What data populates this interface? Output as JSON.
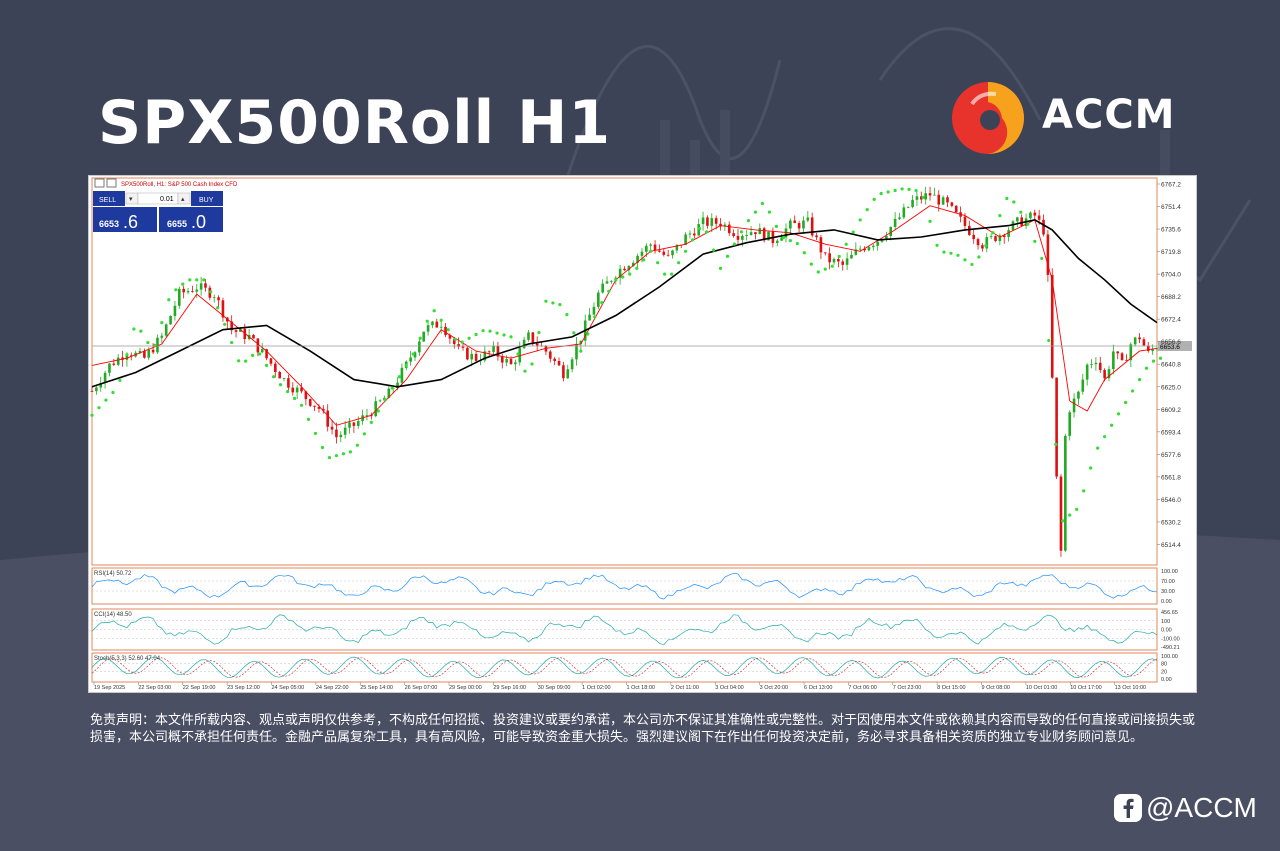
{
  "header": {
    "title": "SPX500Roll H1",
    "brand": "ACCM",
    "brand_colors": {
      "red": "#e8322c",
      "orange": "#f6a21c"
    }
  },
  "chart_window": {
    "caption": "SPX500Roll, H1:  S&P 500 Cash Index CFD",
    "trade_panel": {
      "sell_label": "SELL",
      "buy_label": "BUY",
      "lot": "0.01",
      "sell_price_main": "6653",
      "sell_price_big": ".6",
      "buy_price_main": "6655",
      "buy_price_big": ".0"
    },
    "current_price_label": "6653.6"
  },
  "chart_data": {
    "type": "candlestick",
    "symbol": "SPX500Roll",
    "timeframe": "H1",
    "price_axis": {
      "ticks": [
        "6767.2",
        "6751.4",
        "6735.6",
        "6719.8",
        "6704.0",
        "6688.2",
        "6672.4",
        "6656.6",
        "6640.8",
        "6625.0",
        "6609.2",
        "6593.4",
        "6577.6",
        "6561.8",
        "6546.0",
        "6530.2",
        "6514.4"
      ],
      "ylim": [
        6500,
        6770
      ]
    },
    "time_axis": [
      "19 Sep 2025",
      "22 Sep 03:00",
      "22 Sep 19:00",
      "23 Sep 12:00",
      "24 Sep 05:00",
      "24 Sep 22:00",
      "25 Sep 14:00",
      "26 Sep 07:00",
      "29 Sep 00:00",
      "29 Sep 16:00",
      "30 Sep 09:00",
      "1 Oct 02:00",
      "1 Oct 18:00",
      "2 Oct 11:00",
      "3 Oct 04:00",
      "3 Oct 20:00",
      "6 Oct 13:00",
      "7 Oct 06:00",
      "7 Oct 23:00",
      "8 Oct 15:00",
      "9 Oct 08:00",
      "10 Oct 01:00",
      "10 Oct 17:00",
      "13 Oct 10:00"
    ],
    "close_path": [
      [
        0,
        6622
      ],
      [
        4,
        6640
      ],
      [
        8,
        6650
      ],
      [
        12,
        6645
      ],
      [
        16,
        6660
      ],
      [
        20,
        6690
      ],
      [
        24,
        6695
      ],
      [
        28,
        6690
      ],
      [
        32,
        6665
      ],
      [
        36,
        6660
      ],
      [
        40,
        6645
      ],
      [
        44,
        6630
      ],
      [
        48,
        6620
      ],
      [
        52,
        6610
      ],
      [
        56,
        6590
      ],
      [
        60,
        6598
      ],
      [
        64,
        6608
      ],
      [
        68,
        6620
      ],
      [
        72,
        6640
      ],
      [
        76,
        6665
      ],
      [
        80,
        6670
      ],
      [
        84,
        6650
      ],
      [
        88,
        6645
      ],
      [
        92,
        6650
      ],
      [
        96,
        6640
      ],
      [
        100,
        6660
      ],
      [
        104,
        6650
      ],
      [
        108,
        6635
      ],
      [
        112,
        6660
      ],
      [
        116,
        6690
      ],
      [
        120,
        6705
      ],
      [
        124,
        6715
      ],
      [
        128,
        6725
      ],
      [
        132,
        6715
      ],
      [
        136,
        6730
      ],
      [
        140,
        6740
      ],
      [
        144,
        6740
      ],
      [
        148,
        6732
      ],
      [
        152,
        6735
      ],
      [
        156,
        6728
      ],
      [
        160,
        6738
      ],
      [
        164,
        6740
      ],
      [
        168,
        6715
      ],
      [
        172,
        6710
      ],
      [
        176,
        6722
      ],
      [
        180,
        6728
      ],
      [
        184,
        6740
      ],
      [
        188,
        6755
      ],
      [
        192,
        6760
      ],
      [
        196,
        6752
      ],
      [
        200,
        6738
      ],
      [
        204,
        6725
      ],
      [
        208,
        6732
      ],
      [
        212,
        6740
      ],
      [
        216,
        6745
      ],
      [
        218,
        6735
      ],
      [
        219,
        6700
      ],
      [
        220,
        6630
      ],
      [
        221,
        6560
      ],
      [
        222,
        6520
      ],
      [
        223,
        6590
      ],
      [
        224,
        6610
      ],
      [
        226,
        6620
      ],
      [
        228,
        6640
      ],
      [
        230,
        6645
      ],
      [
        232,
        6630
      ],
      [
        234,
        6650
      ],
      [
        236,
        6640
      ],
      [
        238,
        6655
      ],
      [
        240,
        6660
      ],
      [
        242,
        6648
      ],
      [
        244,
        6654
      ]
    ],
    "series": [
      {
        "name": "MA fast",
        "color": "#ff0000",
        "points": [
          [
            0,
            6640
          ],
          [
            8,
            6645
          ],
          [
            16,
            6655
          ],
          [
            24,
            6690
          ],
          [
            32,
            6670
          ],
          [
            40,
            6650
          ],
          [
            48,
            6625
          ],
          [
            56,
            6598
          ],
          [
            64,
            6605
          ],
          [
            72,
            6630
          ],
          [
            80,
            6665
          ],
          [
            88,
            6650
          ],
          [
            96,
            6645
          ],
          [
            104,
            6652
          ],
          [
            112,
            6655
          ],
          [
            120,
            6700
          ],
          [
            128,
            6720
          ],
          [
            136,
            6725
          ],
          [
            144,
            6738
          ],
          [
            152,
            6735
          ],
          [
            160,
            6733
          ],
          [
            168,
            6725
          ],
          [
            176,
            6720
          ],
          [
            184,
            6735
          ],
          [
            192,
            6752
          ],
          [
            200,
            6745
          ],
          [
            208,
            6730
          ],
          [
            216,
            6742
          ],
          [
            220,
            6700
          ],
          [
            224,
            6615
          ],
          [
            228,
            6608
          ],
          [
            232,
            6630
          ],
          [
            236,
            6640
          ],
          [
            240,
            6650
          ],
          [
            244,
            6652
          ]
        ]
      },
      {
        "name": "MA slow",
        "color": "#000000",
        "points": [
          [
            0,
            6625
          ],
          [
            10,
            6635
          ],
          [
            20,
            6650
          ],
          [
            30,
            6665
          ],
          [
            40,
            6668
          ],
          [
            50,
            6650
          ],
          [
            60,
            6630
          ],
          [
            70,
            6625
          ],
          [
            80,
            6630
          ],
          [
            90,
            6645
          ],
          [
            100,
            6655
          ],
          [
            110,
            6660
          ],
          [
            120,
            6675
          ],
          [
            130,
            6695
          ],
          [
            140,
            6718
          ],
          [
            150,
            6726
          ],
          [
            160,
            6732
          ],
          [
            170,
            6735
          ],
          [
            180,
            6728
          ],
          [
            190,
            6730
          ],
          [
            200,
            6735
          ],
          [
            210,
            6738
          ],
          [
            216,
            6742
          ],
          [
            220,
            6735
          ],
          [
            226,
            6715
          ],
          [
            232,
            6700
          ],
          [
            238,
            6683
          ],
          [
            244,
            6670
          ]
        ]
      },
      {
        "name": "Parabolic SAR",
        "color": "#33dd33",
        "points": [
          [
            0,
            6605
          ],
          [
            6,
            6625
          ],
          [
            10,
            6670
          ],
          [
            14,
            6650
          ],
          [
            18,
            6690
          ],
          [
            22,
            6700
          ],
          [
            26,
            6700
          ],
          [
            30,
            6672
          ],
          [
            34,
            6640
          ],
          [
            38,
            6650
          ],
          [
            42,
            6630
          ],
          [
            48,
            6612
          ],
          [
            54,
            6575
          ],
          [
            60,
            6580
          ],
          [
            66,
            6610
          ],
          [
            70,
            6630
          ],
          [
            74,
            6650
          ],
          [
            78,
            6680
          ],
          [
            84,
            6655
          ],
          [
            90,
            6665
          ],
          [
            96,
            6660
          ],
          [
            100,
            6630
          ],
          [
            104,
            6685
          ],
          [
            108,
            6682
          ],
          [
            112,
            6650
          ],
          [
            116,
            6680
          ],
          [
            120,
            6700
          ],
          [
            124,
            6705
          ],
          [
            128,
            6720
          ],
          [
            132,
            6700
          ],
          [
            136,
            6720
          ],
          [
            140,
            6740
          ],
          [
            144,
            6708
          ],
          [
            150,
            6740
          ],
          [
            154,
            6755
          ],
          [
            158,
            6730
          ],
          [
            162,
            6725
          ],
          [
            166,
            6705
          ],
          [
            170,
            6710
          ],
          [
            176,
            6742
          ],
          [
            180,
            6760
          ],
          [
            186,
            6764
          ],
          [
            190,
            6762
          ],
          [
            194,
            6720
          ],
          [
            198,
            6718
          ],
          [
            202,
            6710
          ],
          [
            206,
            6730
          ],
          [
            210,
            6760
          ],
          [
            214,
            6742
          ],
          [
            218,
            6712
          ],
          [
            222,
            6530
          ],
          [
            226,
            6540
          ],
          [
            230,
            6580
          ],
          [
            234,
            6600
          ],
          [
            238,
            6620
          ],
          [
            242,
            6640
          ],
          [
            244,
            6645
          ]
        ]
      }
    ],
    "indicators": [
      {
        "name": "RSI(14) 50.72",
        "levels": [
          "100.00",
          "70.00",
          "30.00",
          "0.00"
        ],
        "value": 50.72
      },
      {
        "name": "CCI(14) 48.50",
        "levels": [
          "456.65",
          "100",
          "0.00",
          "-100.00",
          "-490.21"
        ],
        "value": 48.5
      },
      {
        "name": "Stoch(5,3,3) 52.60 47.04",
        "levels": [
          "100.00",
          "80",
          "20",
          "0.00"
        ],
        "main": 52.6,
        "signal": 47.04
      }
    ]
  },
  "disclaimer": "免责声明：本文件所载内容、观点或声明仅供参考，不构成任何招揽、投资建议或要约承诺，本公司亦不保证其准确性或完整性。对于因使用本文件或依赖其内容而导致的任何直接或间接损失或损害，本公司概不承担任何责任。金融产品属复杂工具，具有高风险，可能导致资金重大损失。强烈建议阁下在作出任何投资决定前，务必寻求具备相关资质的独立专业财务顾问意见。",
  "social": {
    "icon": "facebook-icon",
    "handle": "@ACCM"
  }
}
